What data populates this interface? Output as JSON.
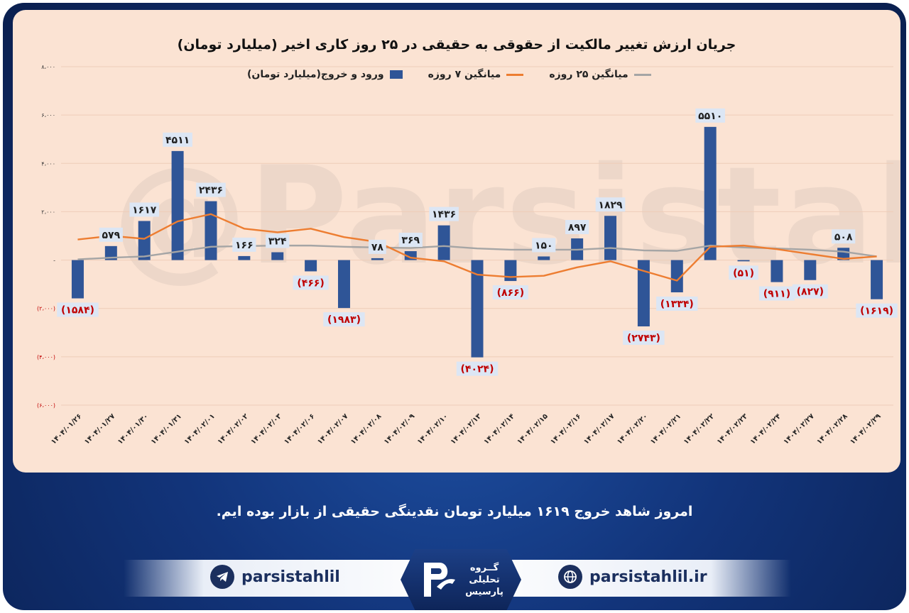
{
  "chart_data": {
    "type": "bar",
    "title": "جریان ارزش تغییر مالکیت از حقوقی به حقیقی در ۲۵ روز کاری اخیر (میلیارد تومان)",
    "legend": {
      "bar": "ورود و خروج(میلیارد تومان)",
      "ma7": "میانگین ۷ روزه",
      "ma25": "میانگین ۲۵ روزه"
    },
    "categories": [
      "۱۴۰۴/۰۱/۲۶",
      "۱۴۰۴/۰۱/۲۷",
      "۱۴۰۴/۰۱/۳۰",
      "۱۴۰۴/۰۱/۳۱",
      "۱۴۰۴/۰۲/۰۱",
      "۱۴۰۴/۰۲/۰۲",
      "۱۴۰۴/۰۲/۰۳",
      "۱۴۰۴/۰۲/۰۶",
      "۱۴۰۴/۰۲/۰۷",
      "۱۴۰۴/۰۲/۰۸",
      "۱۴۰۴/۰۲/۰۹",
      "۱۴۰۴/۰۲/۱۰",
      "۱۴۰۴/۰۲/۱۳",
      "۱۴۰۴/۰۲/۱۴",
      "۱۴۰۴/۰۲/۱۵",
      "۱۴۰۴/۰۲/۱۶",
      "۱۴۰۴/۰۲/۱۷",
      "۱۴۰۴/۰۲/۲۰",
      "۱۴۰۴/۰۲/۲۱",
      "۱۴۰۴/۰۲/۲۲",
      "۱۴۰۴/۰۲/۲۳",
      "۱۴۰۴/۰۲/۲۴",
      "۱۴۰۴/۰۲/۲۷",
      "۱۴۰۴/۰۲/۲۸",
      "۱۴۰۴/۰۲/۲۹"
    ],
    "values": [
      -1584,
      579,
      1617,
      4511,
      2436,
      166,
      324,
      -466,
      -1983,
      78,
      369,
      1436,
      -4024,
      -866,
      150,
      897,
      1829,
      -2743,
      -1334,
      5510,
      -51,
      -911,
      -827,
      508,
      -1619
    ],
    "data_labels": [
      "(۱۵۸۴)",
      "۵۷۹",
      "۱۶۱۷",
      "۴۵۱۱",
      "۲۴۳۶",
      "۱۶۶",
      "۳۲۴",
      "(۴۶۶)",
      "(۱۹۸۳)",
      "۷۸",
      "۳۶۹",
      "۱۴۳۶",
      "(۴۰۲۴)",
      "(۸۶۶)",
      "۱۵۰",
      "۸۹۷",
      "۱۸۲۹",
      "(۲۷۴۳)",
      "(۱۳۳۴)",
      "۵۵۱۰",
      "(۵۱)",
      "(۹۱۱)",
      "(۸۲۷)",
      "۵۰۸",
      "(۱۶۱۹)"
    ],
    "ma7": [
      850,
      1000,
      880,
      1600,
      1900,
      1300,
      1150,
      1300,
      950,
      750,
      100,
      -50,
      -600,
      -700,
      -650,
      -300,
      -50,
      -450,
      -850,
      550,
      600,
      450,
      250,
      50,
      150
    ],
    "ma25": [
      30,
      100,
      150,
      350,
      550,
      580,
      600,
      600,
      550,
      520,
      500,
      580,
      480,
      430,
      430,
      430,
      500,
      400,
      380,
      600,
      520,
      480,
      430,
      350,
      150
    ],
    "yticks": [
      {
        "v": 8000,
        "label": "۸،۰۰۰"
      },
      {
        "v": 6000,
        "label": "۶،۰۰۰"
      },
      {
        "v": 4000,
        "label": "۴،۰۰۰"
      },
      {
        "v": 2000,
        "label": "۲،۰۰۰"
      },
      {
        "v": 0,
        "label": "-"
      },
      {
        "v": -2000,
        "label": "(۲،۰۰۰)"
      },
      {
        "v": -4000,
        "label": "(۴،۰۰۰)"
      },
      {
        "v": -6000,
        "label": "(۶،۰۰۰)"
      }
    ],
    "ylim": [
      -6000,
      8000
    ],
    "grid": true,
    "legend_position": "top",
    "colors": {
      "bar": "#2f5597",
      "ma7": "#ed7d31",
      "ma25": "#a5a5a5",
      "neg_label": "#c00000",
      "pos_label": "#1f1f1f"
    }
  },
  "watermark": "@Parsistahlil",
  "footer": {
    "note": "امروز شاهد خروج ۱۶۱۹ میلیارد تومان نقدینگی حقیقی از بازار بوده ایم.",
    "telegram_handle": "parsistahlil",
    "website": "parsistahlil.ir",
    "logo_line1": "گــروه",
    "logo_line2": "تحلیلی",
    "logo_line3": "پارسیس"
  }
}
